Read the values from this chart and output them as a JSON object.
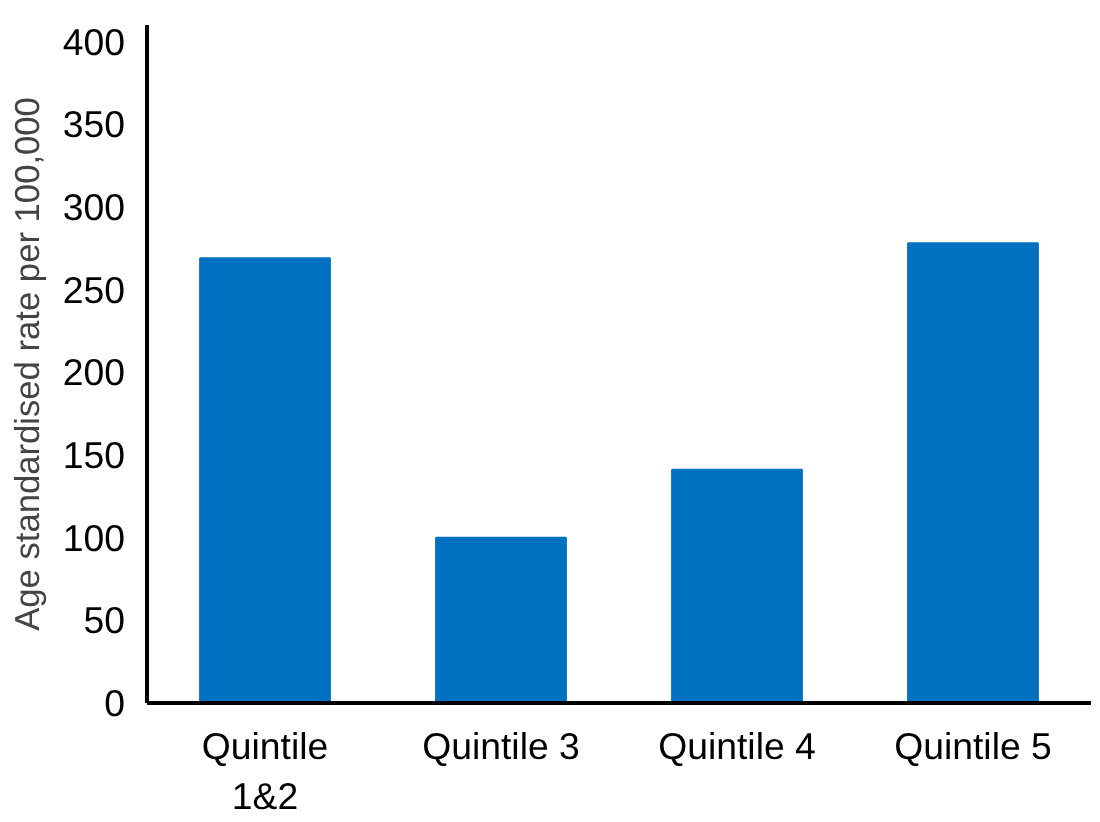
{
  "chart_data": {
    "type": "bar",
    "ylabel": "Age standardised rate per 100,000",
    "categories": [
      "Quintile\n1&2",
      "Quintile 3",
      "Quintile 4",
      "Quintile 5"
    ],
    "values": [
      269,
      100,
      141,
      278
    ],
    "color": "#0070c0",
    "ylim": [
      0,
      410
    ],
    "yticks": [
      0,
      50,
      100,
      150,
      200,
      250,
      300,
      350,
      400
    ],
    "grid": false
  }
}
